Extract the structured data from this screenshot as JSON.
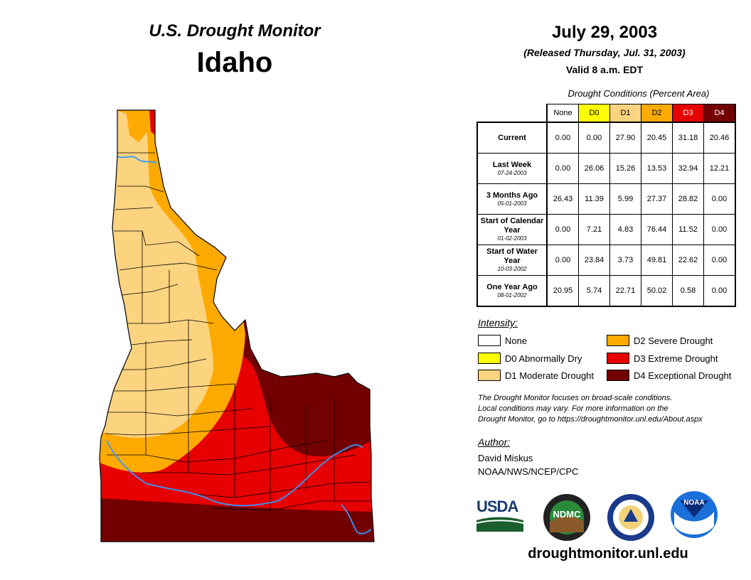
{
  "header": {
    "title": "U.S. Drought Monitor",
    "state": "Idaho",
    "date": "July 29, 2003",
    "released": "(Released Thursday, Jul. 31, 2003)",
    "valid": "Valid 8 a.m. EDT"
  },
  "table": {
    "caption": "Drought Conditions (Percent Area)",
    "columns": [
      "None",
      "D0",
      "D1",
      "D2",
      "D3",
      "D4"
    ],
    "column_colors": [
      "#ffffff",
      "#ffff00",
      "#fcd37f",
      "#ffaa00",
      "#e60000",
      "#730000"
    ],
    "rows": [
      {
        "label": "Current",
        "date": "",
        "values": [
          "0.00",
          "0.00",
          "27.90",
          "20.45",
          "31.18",
          "20.46"
        ]
      },
      {
        "label": "Last Week",
        "date": "07-24-2003",
        "values": [
          "0.00",
          "26.06",
          "15.26",
          "13.53",
          "32.94",
          "12.21"
        ]
      },
      {
        "label": "3 Months Ago",
        "date": "05-01-2003",
        "values": [
          "26.43",
          "11.39",
          "5.99",
          "27.37",
          "28.82",
          "0.00"
        ]
      },
      {
        "label": "Start of Calendar Year",
        "date": "01-02-2003",
        "values": [
          "0.00",
          "7.21",
          "4.83",
          "76.44",
          "11.52",
          "0.00"
        ]
      },
      {
        "label": "Start of Water Year",
        "date": "10-03-2002",
        "values": [
          "0.00",
          "23.84",
          "3.73",
          "49.81",
          "22.62",
          "0.00"
        ]
      },
      {
        "label": "One Year Ago",
        "date": "08-01-2002",
        "values": [
          "20.95",
          "5.74",
          "22.71",
          "50.02",
          "0.58",
          "0.00"
        ]
      }
    ]
  },
  "legend": {
    "title": "Intensity:",
    "items": [
      {
        "label": "None",
        "color": "#ffffff"
      },
      {
        "label": "D0 Abnormally Dry",
        "color": "#ffff00"
      },
      {
        "label": "D1 Moderate Drought",
        "color": "#fcd37f"
      },
      {
        "label": "D2 Severe Drought",
        "color": "#ffaa00"
      },
      {
        "label": "D3 Extreme Drought",
        "color": "#e60000"
      },
      {
        "label": "D4 Exceptional Drought",
        "color": "#730000"
      }
    ]
  },
  "note": {
    "line1": "The Drought Monitor focuses on broad-scale conditions.",
    "line2": "Local conditions may vary. For more information on the",
    "line3": "Drought Monitor, go to https://droughtmonitor.unl.edu/About.aspx"
  },
  "author": {
    "title": "Author:",
    "name": "David Miskus",
    "org": "NOAA/NWS/NCEP/CPC"
  },
  "logos": {
    "usda": "USDA",
    "ndmc": "NDMC",
    "noaa": "NOAA"
  },
  "website": "droughtmonitor.unl.edu"
}
